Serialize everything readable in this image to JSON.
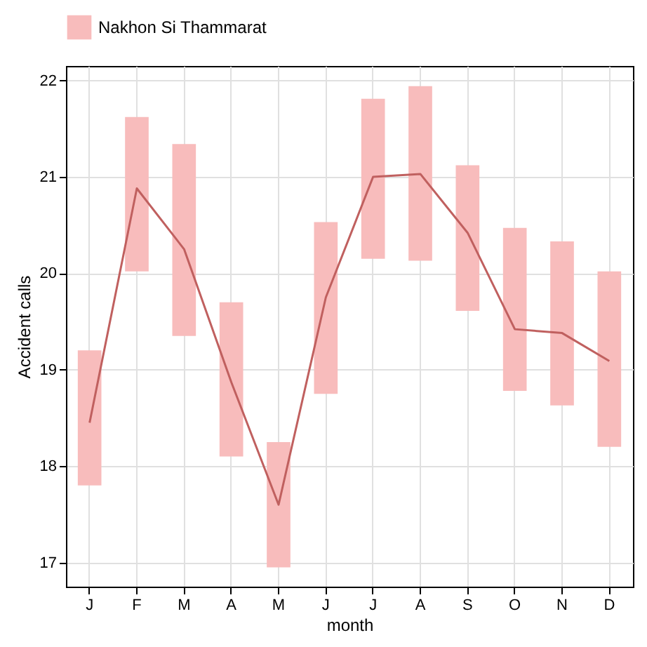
{
  "chart_data": {
    "type": "bar",
    "xlabel": "month",
    "ylabel": "Accident calls",
    "categories": [
      "J",
      "F",
      "M",
      "A",
      "M",
      "J",
      "J",
      "A",
      "S",
      "O",
      "N",
      "D"
    ],
    "series": [
      {
        "name": "Nakhon Si Thammarat",
        "type": "bar",
        "color": "#f8bcbc",
        "base": [
          17.8,
          20.02,
          19.35,
          18.1,
          16.95,
          18.75,
          20.15,
          20.13,
          19.61,
          18.78,
          18.63,
          18.2
        ],
        "values": [
          1.4,
          1.6,
          1.99,
          1.6,
          1.3,
          1.78,
          1.66,
          1.81,
          1.51,
          1.69,
          1.7,
          1.82
        ]
      },
      {
        "type": "line",
        "color": "#c0605f",
        "values": [
          18.45,
          20.88,
          20.25,
          18.87,
          17.6,
          19.75,
          21.0,
          21.03,
          20.42,
          19.42,
          19.38,
          19.09
        ]
      }
    ],
    "ylim": [
      16.75,
      22.15
    ],
    "yticks": [
      17,
      18,
      19,
      20,
      21,
      22
    ],
    "grid": true,
    "legend": "top"
  }
}
